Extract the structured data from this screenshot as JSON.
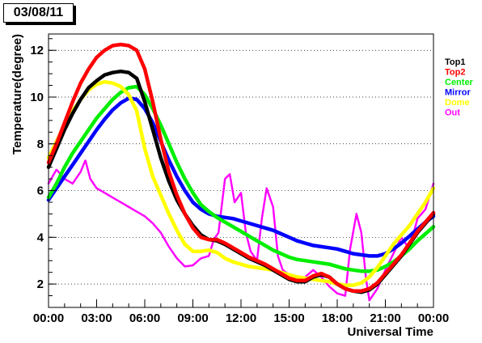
{
  "chart_data": {
    "type": "scatter",
    "title": "03/08/11",
    "xlabel": "Universal Time",
    "ylabel": "Temperature(degree)",
    "xlim": [
      0,
      24
    ],
    "ylim": [
      1,
      12.7
    ],
    "x_ticks": [
      0,
      3,
      6,
      9,
      12,
      15,
      18,
      21,
      24
    ],
    "x_tick_labels": [
      "00:00",
      "03:00",
      "06:00",
      "09:00",
      "12:00",
      "15:00",
      "18:00",
      "21:00",
      "00:00"
    ],
    "y_ticks": [
      2,
      4,
      6,
      8,
      10,
      12
    ],
    "y_tick_labels": [
      "2",
      "4",
      "6",
      "8",
      "10",
      "12"
    ],
    "grid": "horizontal-dotted",
    "legend_position": "right",
    "series": [
      {
        "name": "Top1",
        "color": "#000000",
        "points": [
          [
            0,
            7.0
          ],
          [
            0.5,
            7.8
          ],
          [
            1,
            8.6
          ],
          [
            1.5,
            9.3
          ],
          [
            2,
            9.9
          ],
          [
            2.5,
            10.4
          ],
          [
            3,
            10.7
          ],
          [
            3.5,
            10.95
          ],
          [
            4,
            11.05
          ],
          [
            4.5,
            11.1
          ],
          [
            5,
            11.05
          ],
          [
            5.5,
            10.8
          ],
          [
            6,
            9.8
          ],
          [
            6.5,
            8.6
          ],
          [
            7,
            7.4
          ],
          [
            7.5,
            6.4
          ],
          [
            8,
            5.6
          ],
          [
            8.5,
            5.0
          ],
          [
            9,
            4.5
          ],
          [
            9.5,
            4.1
          ],
          [
            10,
            3.9
          ],
          [
            10.5,
            3.85
          ],
          [
            11,
            3.7
          ],
          [
            11.5,
            3.5
          ],
          [
            12,
            3.3
          ],
          [
            12.5,
            3.1
          ],
          [
            13,
            2.95
          ],
          [
            13.5,
            2.8
          ],
          [
            14,
            2.6
          ],
          [
            14.5,
            2.4
          ],
          [
            15,
            2.2
          ],
          [
            15.5,
            2.1
          ],
          [
            16,
            2.1
          ],
          [
            16.5,
            2.3
          ],
          [
            17,
            2.4
          ],
          [
            17.5,
            2.3
          ],
          [
            18,
            2.0
          ],
          [
            18.5,
            1.8
          ],
          [
            19,
            1.7
          ],
          [
            19.5,
            1.65
          ],
          [
            20,
            1.75
          ],
          [
            20.5,
            2.0
          ],
          [
            21,
            2.4
          ],
          [
            21.5,
            2.8
          ],
          [
            22,
            3.2
          ],
          [
            22.5,
            3.7
          ],
          [
            23,
            4.2
          ],
          [
            23.5,
            4.6
          ],
          [
            24,
            5.0
          ]
        ]
      },
      {
        "name": "Top2",
        "color": "#ff0000",
        "points": [
          [
            0,
            7.2
          ],
          [
            0.5,
            8.0
          ],
          [
            1,
            8.9
          ],
          [
            1.5,
            9.8
          ],
          [
            2,
            10.6
          ],
          [
            2.5,
            11.2
          ],
          [
            3,
            11.7
          ],
          [
            3.5,
            12.0
          ],
          [
            4,
            12.2
          ],
          [
            4.5,
            12.25
          ],
          [
            5,
            12.2
          ],
          [
            5.5,
            12.0
          ],
          [
            6,
            11.2
          ],
          [
            6.5,
            9.8
          ],
          [
            7,
            8.2
          ],
          [
            7.5,
            6.8
          ],
          [
            8,
            5.8
          ],
          [
            8.5,
            5.0
          ],
          [
            9,
            4.4
          ],
          [
            9.5,
            4.0
          ],
          [
            10,
            3.9
          ],
          [
            10.5,
            3.9
          ],
          [
            11,
            3.75
          ],
          [
            11.5,
            3.55
          ],
          [
            12,
            3.35
          ],
          [
            12.5,
            3.15
          ],
          [
            13,
            3.0
          ],
          [
            13.5,
            2.85
          ],
          [
            14,
            2.65
          ],
          [
            14.5,
            2.45
          ],
          [
            15,
            2.25
          ],
          [
            15.5,
            2.15
          ],
          [
            16,
            2.15
          ],
          [
            16.5,
            2.35
          ],
          [
            17,
            2.45
          ],
          [
            17.5,
            2.3
          ],
          [
            18,
            2.0
          ],
          [
            18.5,
            1.8
          ],
          [
            19,
            1.7
          ],
          [
            19.5,
            1.7
          ],
          [
            20,
            1.8
          ],
          [
            20.5,
            2.05
          ],
          [
            21,
            2.45
          ],
          [
            21.5,
            2.85
          ],
          [
            22,
            3.25
          ],
          [
            22.5,
            3.75
          ],
          [
            23,
            4.25
          ],
          [
            23.5,
            4.65
          ],
          [
            24,
            5.05
          ]
        ]
      },
      {
        "name": "Center",
        "color": "#00ee00",
        "points": [
          [
            0,
            5.7
          ],
          [
            0.5,
            6.3
          ],
          [
            1,
            7.0
          ],
          [
            1.5,
            7.6
          ],
          [
            2,
            8.1
          ],
          [
            2.5,
            8.6
          ],
          [
            3,
            9.1
          ],
          [
            3.5,
            9.5
          ],
          [
            4,
            9.9
          ],
          [
            4.5,
            10.2
          ],
          [
            5,
            10.4
          ],
          [
            5.5,
            10.45
          ],
          [
            6,
            10.1
          ],
          [
            6.5,
            9.5
          ],
          [
            7,
            8.8
          ],
          [
            7.5,
            8.0
          ],
          [
            8,
            7.2
          ],
          [
            8.5,
            6.5
          ],
          [
            9,
            5.9
          ],
          [
            9.5,
            5.4
          ],
          [
            10,
            5.1
          ],
          [
            10.5,
            4.85
          ],
          [
            11,
            4.65
          ],
          [
            11.5,
            4.45
          ],
          [
            12,
            4.25
          ],
          [
            12.5,
            4.05
          ],
          [
            13,
            3.85
          ],
          [
            13.5,
            3.65
          ],
          [
            14,
            3.45
          ],
          [
            14.5,
            3.3
          ],
          [
            15,
            3.15
          ],
          [
            15.5,
            3.05
          ],
          [
            16,
            3.0
          ],
          [
            16.5,
            2.95
          ],
          [
            17,
            2.9
          ],
          [
            17.5,
            2.85
          ],
          [
            18,
            2.75
          ],
          [
            18.5,
            2.65
          ],
          [
            19,
            2.6
          ],
          [
            19.5,
            2.55
          ],
          [
            20,
            2.55
          ],
          [
            20.5,
            2.6
          ],
          [
            21,
            2.75
          ],
          [
            21.5,
            2.95
          ],
          [
            22,
            3.2
          ],
          [
            22.5,
            3.5
          ],
          [
            23,
            3.85
          ],
          [
            23.5,
            4.15
          ],
          [
            24,
            4.45
          ]
        ]
      },
      {
        "name": "Mirror",
        "color": "#0000ff",
        "points": [
          [
            0,
            5.6
          ],
          [
            0.5,
            6.1
          ],
          [
            1,
            6.6
          ],
          [
            1.5,
            7.1
          ],
          [
            2,
            7.6
          ],
          [
            2.5,
            8.1
          ],
          [
            3,
            8.6
          ],
          [
            3.5,
            9.05
          ],
          [
            4,
            9.45
          ],
          [
            4.5,
            9.75
          ],
          [
            5,
            9.95
          ],
          [
            5.5,
            9.9
          ],
          [
            6,
            9.5
          ],
          [
            6.5,
            8.9
          ],
          [
            7,
            8.1
          ],
          [
            7.5,
            7.3
          ],
          [
            8,
            6.6
          ],
          [
            8.5,
            6.0
          ],
          [
            9,
            5.5
          ],
          [
            9.5,
            5.2
          ],
          [
            10,
            5.0
          ],
          [
            10.5,
            4.9
          ],
          [
            11,
            4.85
          ],
          [
            11.5,
            4.8
          ],
          [
            12,
            4.7
          ],
          [
            12.5,
            4.6
          ],
          [
            13,
            4.5
          ],
          [
            13.5,
            4.4
          ],
          [
            14,
            4.3
          ],
          [
            14.5,
            4.15
          ],
          [
            15,
            4.0
          ],
          [
            15.5,
            3.85
          ],
          [
            16,
            3.75
          ],
          [
            16.5,
            3.65
          ],
          [
            17,
            3.6
          ],
          [
            17.5,
            3.55
          ],
          [
            18,
            3.5
          ],
          [
            18.5,
            3.4
          ],
          [
            19,
            3.3
          ],
          [
            19.5,
            3.25
          ],
          [
            20,
            3.2
          ],
          [
            20.5,
            3.2
          ],
          [
            21,
            3.3
          ],
          [
            21.5,
            3.5
          ],
          [
            22,
            3.75
          ],
          [
            22.5,
            4.05
          ],
          [
            23,
            4.35
          ],
          [
            23.5,
            4.65
          ],
          [
            24,
            4.9
          ]
        ]
      },
      {
        "name": "Dome",
        "color": "#ffff00",
        "points": [
          [
            0,
            7.4
          ],
          [
            0.5,
            8.1
          ],
          [
            1,
            8.8
          ],
          [
            1.5,
            9.4
          ],
          [
            2,
            9.9
          ],
          [
            2.5,
            10.3
          ],
          [
            3,
            10.55
          ],
          [
            3.5,
            10.65
          ],
          [
            4,
            10.6
          ],
          [
            4.5,
            10.45
          ],
          [
            5,
            10.1
          ],
          [
            5.5,
            9.4
          ],
          [
            6,
            7.8
          ],
          [
            6.5,
            6.6
          ],
          [
            7,
            5.8
          ],
          [
            7.5,
            5.0
          ],
          [
            8,
            4.3
          ],
          [
            8.5,
            3.7
          ],
          [
            9,
            3.4
          ],
          [
            9.5,
            3.4
          ],
          [
            10,
            3.45
          ],
          [
            10.5,
            3.35
          ],
          [
            11,
            3.1
          ],
          [
            11.5,
            2.95
          ],
          [
            12,
            2.85
          ],
          [
            12.5,
            2.75
          ],
          [
            13,
            2.7
          ],
          [
            13.5,
            2.65
          ],
          [
            14,
            2.6
          ],
          [
            14.5,
            2.5
          ],
          [
            15,
            2.4
          ],
          [
            15.5,
            2.3
          ],
          [
            16,
            2.25
          ],
          [
            16.5,
            2.2
          ],
          [
            17,
            2.15
          ],
          [
            17.5,
            2.1
          ],
          [
            18,
            2.0
          ],
          [
            18.5,
            1.95
          ],
          [
            19,
            1.95
          ],
          [
            19.5,
            2.05
          ],
          [
            20,
            2.3
          ],
          [
            20.5,
            2.7
          ],
          [
            21,
            3.2
          ],
          [
            21.5,
            3.7
          ],
          [
            22,
            4.1
          ],
          [
            22.5,
            4.5
          ],
          [
            23,
            5.0
          ],
          [
            23.5,
            5.5
          ],
          [
            24,
            6.1
          ]
        ]
      },
      {
        "name": "Out",
        "color": "#ff00ff",
        "points": [
          [
            0,
            6.3
          ],
          [
            0.5,
            6.9
          ],
          [
            1,
            6.5
          ],
          [
            1.5,
            6.3
          ],
          [
            2,
            6.8
          ],
          [
            2.3,
            7.3
          ],
          [
            2.6,
            6.5
          ],
          [
            3,
            6.1
          ],
          [
            3.5,
            5.9
          ],
          [
            4,
            5.7
          ],
          [
            4.5,
            5.5
          ],
          [
            5,
            5.3
          ],
          [
            5.5,
            5.1
          ],
          [
            6,
            4.9
          ],
          [
            6.5,
            4.6
          ],
          [
            7,
            4.2
          ],
          [
            7.5,
            3.6
          ],
          [
            8,
            3.1
          ],
          [
            8.5,
            2.75
          ],
          [
            9,
            2.8
          ],
          [
            9.5,
            3.1
          ],
          [
            10,
            3.2
          ],
          [
            10.3,
            3.9
          ],
          [
            10.6,
            4.2
          ],
          [
            11,
            6.5
          ],
          [
            11.3,
            6.7
          ],
          [
            11.6,
            5.5
          ],
          [
            12,
            5.9
          ],
          [
            12.3,
            4.2
          ],
          [
            12.6,
            3.4
          ],
          [
            13,
            3.0
          ],
          [
            13.3,
            4.8
          ],
          [
            13.6,
            6.1
          ],
          [
            14,
            5.3
          ],
          [
            14.3,
            3.2
          ],
          [
            14.6,
            2.6
          ],
          [
            15,
            2.4
          ],
          [
            15.5,
            2.1
          ],
          [
            16,
            2.3
          ],
          [
            16.5,
            2.6
          ],
          [
            17,
            2.3
          ],
          [
            17.5,
            1.9
          ],
          [
            18,
            1.6
          ],
          [
            18.5,
            1.5
          ],
          [
            18.8,
            3.5
          ],
          [
            19.2,
            5.0
          ],
          [
            19.5,
            4.2
          ],
          [
            19.8,
            2.2
          ],
          [
            20,
            1.3
          ],
          [
            20.5,
            1.8
          ],
          [
            21,
            2.6
          ],
          [
            21.5,
            3.3
          ],
          [
            22,
            4.0
          ],
          [
            22.5,
            3.5
          ],
          [
            23,
            4.8
          ],
          [
            23.5,
            5.2
          ],
          [
            24,
            6.3
          ]
        ]
      }
    ]
  }
}
